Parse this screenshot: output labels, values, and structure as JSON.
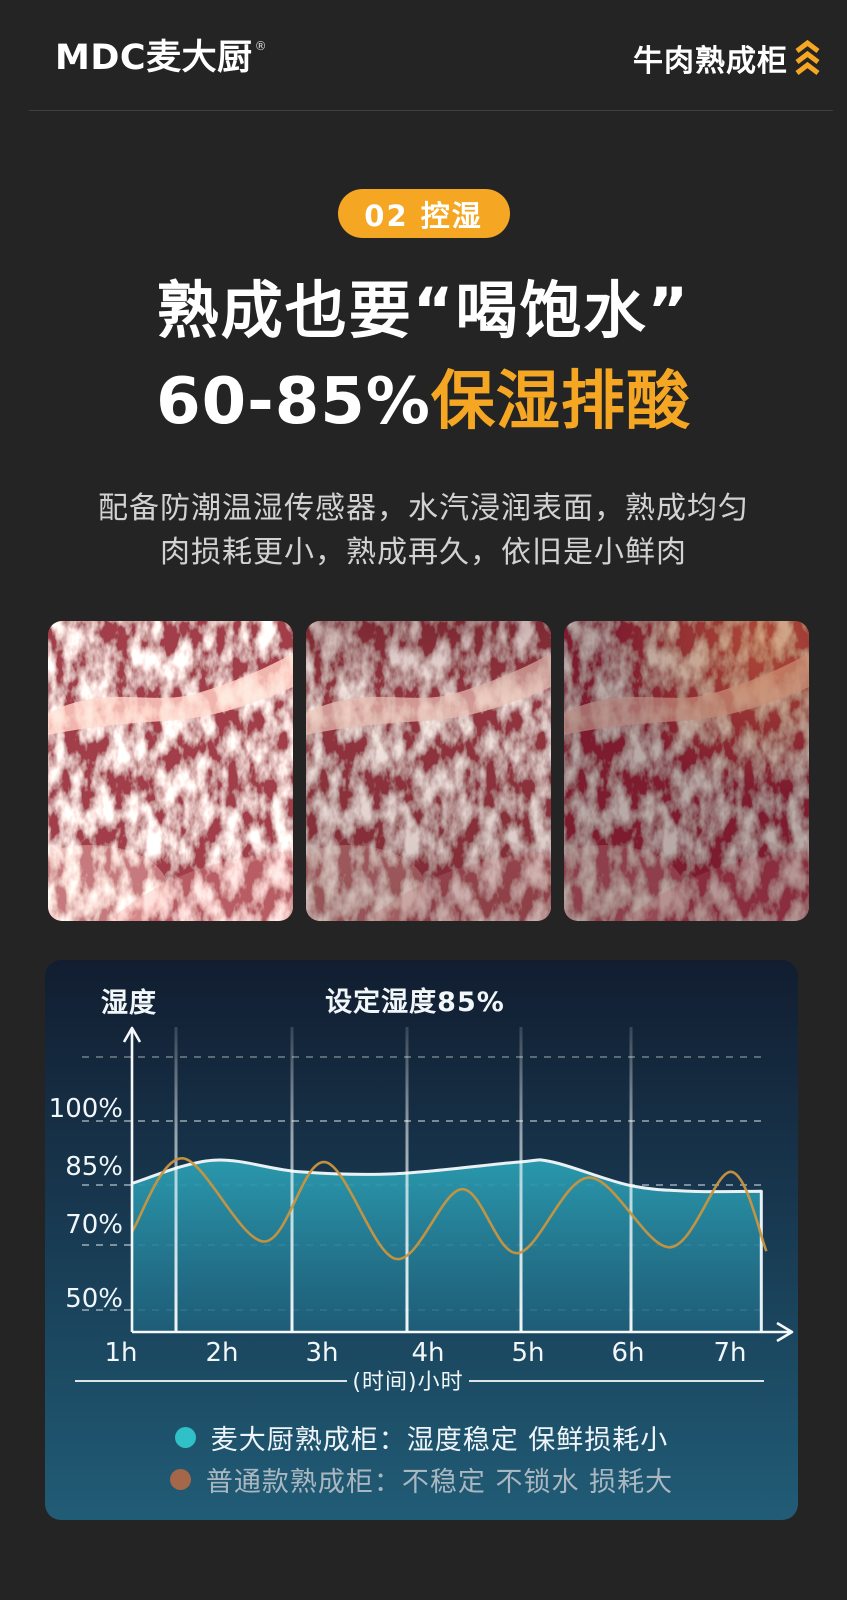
{
  "page": {
    "background": "#242424",
    "accent_orange": "#F5A623"
  },
  "header": {
    "logo_text": "MDC麦大厨",
    "logo_reg": "®",
    "product_label": "牛肉熟成柜",
    "chevrons_icon": "triple-chevron-up-icon",
    "chevrons_color": "#F5A623"
  },
  "hero": {
    "badge": "02 控湿",
    "title": "熟成也要“喝饱水”",
    "subtitle_white": "60-85%",
    "subtitle_orange": "保湿排酸",
    "desc_line1": "配备防潮温湿传感器，水汽浸润表面，熟成均匀",
    "desc_line2": "肉损耗更小，熟成再久，依旧是小鲜肉"
  },
  "gallery": {
    "photos": [
      "marbled-beef-photo-light",
      "marbled-beef-photo-medium",
      "marbled-beef-photo-dark"
    ]
  },
  "chart_data": {
    "type": "line",
    "title_annotation": "设定湿度85%",
    "y_axis_label": "湿度",
    "x_axis_label": "(时间)小时",
    "x_tick_labels": [
      "1h",
      "2h",
      "3h",
      "4h",
      "5h",
      "6h",
      "7h"
    ],
    "y_tick_labels": [
      "100%",
      "85%",
      "70%",
      "50%"
    ],
    "set_humidity_percent": 85,
    "x_unit": "hours",
    "y_unit": "relative humidity %",
    "ylim": [
      45,
      105
    ],
    "grid": "dashed-horizontal",
    "legend_position": "bottom",
    "series": [
      {
        "name": "麦大厨熟成柜",
        "style": "area",
        "line_color": "#e9f1f5",
        "fill_color": "#2b9cb0",
        "points": [
          [
            1,
            80.5
          ],
          [
            1.8,
            86.5
          ],
          [
            2.65,
            83.5
          ],
          [
            3.6,
            83
          ],
          [
            4.8,
            86
          ],
          [
            5.15,
            86
          ],
          [
            5.9,
            80
          ],
          [
            6.5,
            78.5
          ],
          [
            7.2,
            78.5
          ]
        ]
      },
      {
        "name": "普通款熟成柜",
        "style": "line",
        "line_color": "#c9953f",
        "points": [
          [
            1,
            68
          ],
          [
            1.5,
            87
          ],
          [
            2.3,
            65.5
          ],
          [
            2.9,
            86
          ],
          [
            3.6,
            61
          ],
          [
            4.25,
            79
          ],
          [
            4.8,
            62.5
          ],
          [
            5.5,
            82
          ],
          [
            6.3,
            64
          ],
          [
            6.9,
            83.5
          ],
          [
            7.25,
            63
          ]
        ]
      }
    ],
    "legend": [
      {
        "label": "麦大厨熟成柜：湿度稳定 保鲜损耗小",
        "color": "#2fc0c8"
      },
      {
        "label": "普通款熟成柜：不稳定 不锁水 损耗大",
        "color": "#a5674a"
      }
    ]
  }
}
